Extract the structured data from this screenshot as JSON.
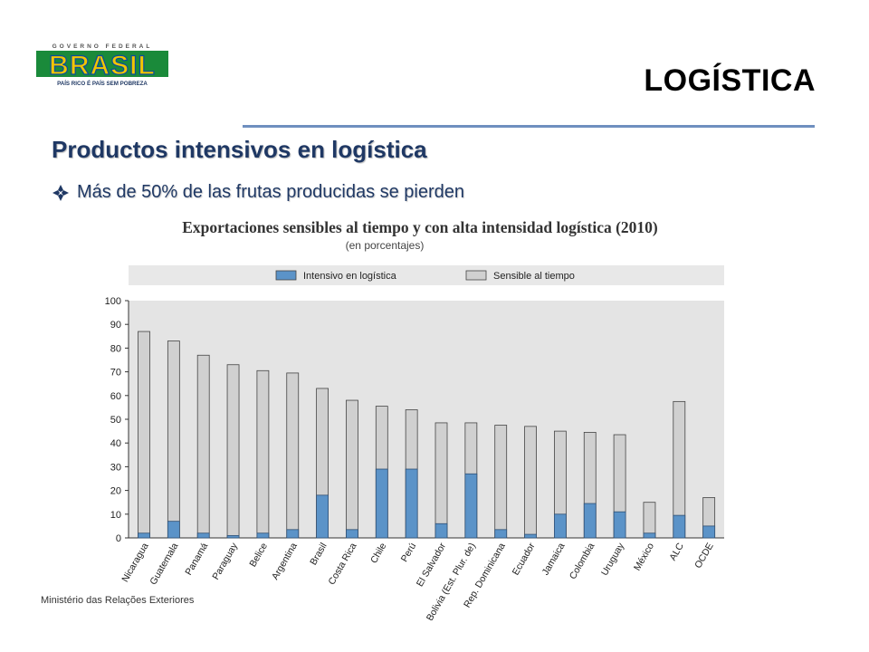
{
  "logo": {
    "top_text": "GOVERNO FEDERAL",
    "brand": "BRASIL",
    "tagline": "PAÍS RICO É PAÍS SEM POBREZA"
  },
  "slide": {
    "title": "LOGÍSTICA",
    "heading": "Productos intensivos en logística",
    "bullet": "Más de 50% de las frutas producidas se pierden",
    "bullet_icon": "diamond-bullet-icon",
    "footer": "Ministério das Relações Exteriores"
  },
  "chart_data": {
    "type": "bar",
    "stacked": false,
    "overlay": true,
    "title": "Exportaciones sensibles al tiempo y con alta intensidad logística (2010)",
    "subtitle": "(en porcentajes)",
    "xlabel": "",
    "ylabel": "",
    "ylim": [
      0,
      100
    ],
    "yticks": [
      0,
      10,
      20,
      30,
      40,
      50,
      60,
      70,
      80,
      90,
      100
    ],
    "grid": false,
    "legend_position": "top",
    "categories": [
      "Nicaragua",
      "Guatemala",
      "Panamá",
      "Paraguay",
      "Belice",
      "Argentina",
      "Brasil",
      "Costa Rica",
      "Chile",
      "Perú",
      "El Salvador",
      "Bolivia (Est. Plur. de)",
      "Rep. Dominicana",
      "Ecuador",
      "Jamaica",
      "Colombia",
      "Uruguay",
      "México",
      "ALC",
      "OCDE"
    ],
    "series": [
      {
        "name": "Intensivo en logística",
        "color": "#5b93c8",
        "values": [
          2,
          7,
          2,
          1,
          2,
          3.5,
          18,
          3.5,
          29,
          29,
          6,
          27,
          3.5,
          1.5,
          10,
          14.5,
          11,
          2,
          9.5,
          5
        ]
      },
      {
        "name": "Sensible al tiempo",
        "color": "#d0d0d0",
        "values": [
          87,
          83,
          77,
          73,
          70.5,
          69.5,
          63,
          58,
          55.5,
          54,
          48.5,
          48.5,
          47.5,
          47,
          45,
          44.5,
          43.5,
          15,
          57.5,
          17
        ]
      }
    ]
  }
}
